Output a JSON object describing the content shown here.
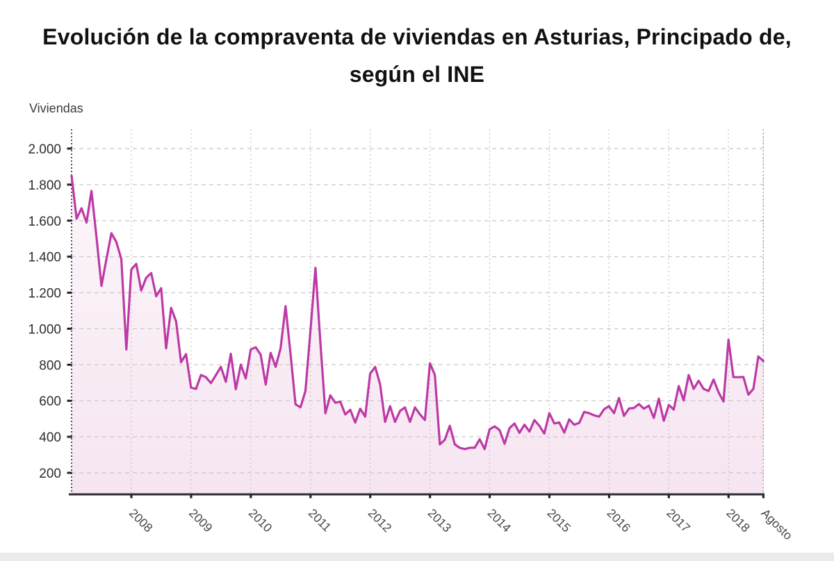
{
  "title": "Evolución de la compraventa de viviendas en Asturias, Principado de, según el INE",
  "y_axis_label": "Viviendas",
  "colors": {
    "line": "#bd39a5",
    "fill_top": "#fcf6fa",
    "fill_bottom": "#f6e5f1",
    "grid": "#cdcdcd",
    "vgrid": "#c8c8c8",
    "axis": "#2b2b30",
    "left_axis_dots": "#222222",
    "right_edge_dots": "#a5a5a5",
    "tick": "#222222",
    "y_label_text": "#2d2d2d",
    "x_label_text": "#474747",
    "footer": "#ebebeb"
  },
  "chart_data": {
    "type": "area",
    "title": "Evolución de la compraventa de viviendas en Asturias, Principado de, según el INE",
    "xlabel": "",
    "ylabel": "Viviendas",
    "frequency": "monthly",
    "x_start": "2007-01",
    "x_end": "2018-08",
    "ylim": [
      80,
      2108
    ],
    "grid": true,
    "legend_position": "none",
    "y_ticks": [
      200,
      400,
      600,
      800,
      1000,
      1200,
      1400,
      1600,
      1800,
      2000
    ],
    "y_tick_labels": [
      "200",
      "400",
      "600",
      "800",
      "1.000",
      "1.200",
      "1.400",
      "1.600",
      "1.800",
      "2.000"
    ],
    "x_tick_labels": [
      "2008",
      "2009",
      "2010",
      "2011",
      "2012",
      "2013",
      "2014",
      "2015",
      "2016",
      "2017",
      "2018",
      "Agosto"
    ],
    "x_tick_month_index": [
      12,
      24,
      36,
      48,
      60,
      72,
      84,
      96,
      108,
      120,
      132,
      139
    ],
    "series": [
      {
        "name": "Viviendas",
        "values": [
          1848,
          1611,
          1669,
          1589,
          1765,
          1510,
          1238,
          1386,
          1530,
          1482,
          1386,
          885,
          1328,
          1360,
          1212,
          1283,
          1309,
          1180,
          1225,
          891,
          1116,
          1040,
          814,
          859,
          673,
          666,
          743,
          731,
          698,
          743,
          788,
          705,
          861,
          664,
          801,
          724,
          885,
          897,
          856,
          690,
          866,
          788,
          891,
          1125,
          858,
          580,
          564,
          655,
          990,
          1338,
          923,
          531,
          630,
          589,
          595,
          524,
          550,
          479,
          556,
          512,
          750,
          788,
          692,
          483,
          570,
          483,
          544,
          563,
          483,
          563,
          525,
          493,
          808,
          743,
          358,
          384,
          461,
          358,
          339,
          332,
          339,
          339,
          386,
          332,
          442,
          458,
          438,
          361,
          448,
          474,
          422,
          467,
          429,
          493,
          461,
          418,
          531,
          474,
          480,
          423,
          497,
          467,
          477,
          538,
          531,
          519,
          512,
          553,
          570,
          531,
          615,
          516,
          557,
          560,
          582,
          556,
          573,
          505,
          612,
          489,
          577,
          551,
          682,
          602,
          743,
          666,
          711,
          666,
          654,
          718,
          647,
          596,
          939,
          731,
          731,
          732,
          634,
          666,
          846,
          820
        ]
      }
    ]
  }
}
